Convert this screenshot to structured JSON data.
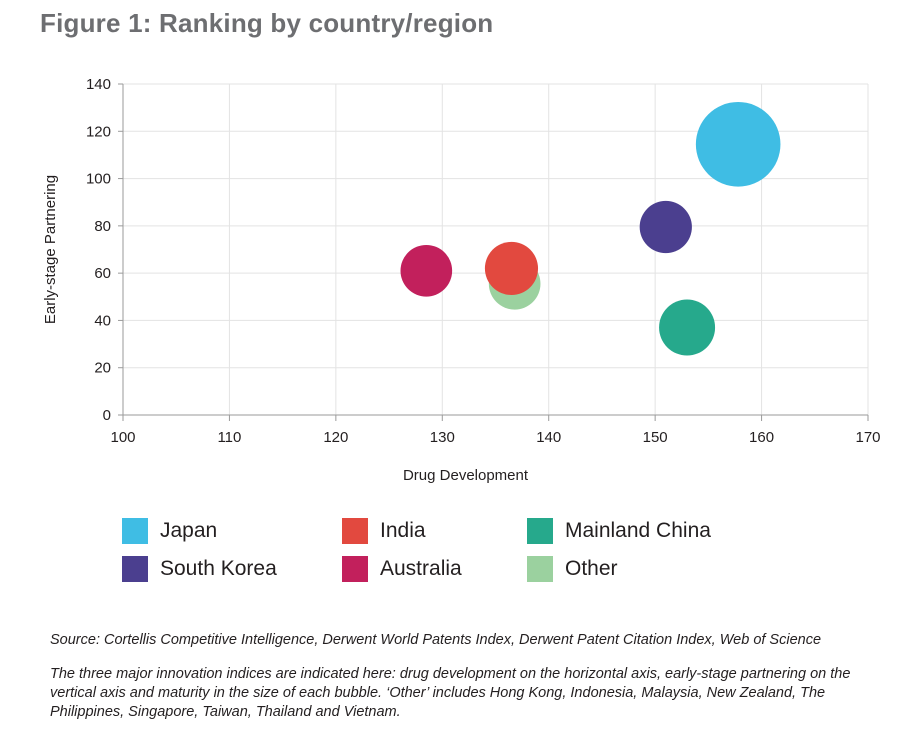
{
  "figure": {
    "title": "Figure 1: Ranking by country/region",
    "source": "Source: Cortellis Competitive Intelligence, Derwent World Patents Index, Derwent Patent Citation Index, Web of Science",
    "note": "The three major innovation indices are indicated here: drug development on the horizontal axis, early-stage partnering on the vertical axis and maturity in the size of each bubble.  ‘Other’ includes Hong Kong, Indonesia, Malaysia, New Zealand, The Philippines, Singapore, Taiwan, Thailand and Vietnam."
  },
  "chart_data": {
    "type": "scatter",
    "subtype": "bubble",
    "title": "Figure 1: Ranking by country/region",
    "xlabel": "Drug Development",
    "ylabel": "Early-stage Partnering",
    "xlim": [
      100,
      170
    ],
    "ylim": [
      0,
      140
    ],
    "xticks": [
      100,
      110,
      120,
      130,
      140,
      150,
      160,
      170
    ],
    "yticks": [
      0,
      20,
      40,
      60,
      80,
      100,
      120,
      140
    ],
    "grid": true,
    "series": [
      {
        "name": "Other",
        "x": 136.8,
        "y": 55.5,
        "size": 0.85,
        "color": "#9bd19f"
      },
      {
        "name": "Japan",
        "x": 157.8,
        "y": 114.5,
        "size": 1.5,
        "color": "#3fbde4"
      },
      {
        "name": "South Korea",
        "x": 151,
        "y": 79.5,
        "size": 0.87,
        "color": "#4b3f8f"
      },
      {
        "name": "Mainland China",
        "x": 153,
        "y": 37,
        "size": 1.0,
        "color": "#26a98c"
      },
      {
        "name": "India",
        "x": 136.5,
        "y": 62,
        "size": 0.9,
        "color": "#e2493f"
      },
      {
        "name": "Australia",
        "x": 128.5,
        "y": 61,
        "size": 0.85,
        "color": "#c2205c"
      }
    ]
  },
  "legend": [
    {
      "label": "Japan",
      "color": "#3fbde4"
    },
    {
      "label": "India",
      "color": "#e2493f"
    },
    {
      "label": "Mainland China",
      "color": "#26a98c"
    },
    {
      "label": "South Korea",
      "color": "#4b3f8f"
    },
    {
      "label": "Australia",
      "color": "#c2205c"
    },
    {
      "label": "Other",
      "color": "#9bd19f"
    }
  ]
}
